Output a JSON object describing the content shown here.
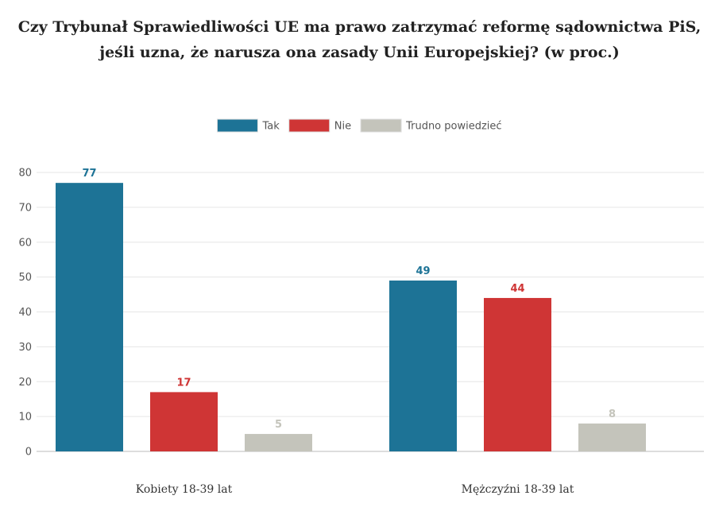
{
  "chart_data": {
    "type": "bar",
    "title_lines": [
      "Czy Trybunał Sprawiedliwości UE ma prawo zatrzymać reformę sądownictwa PiS,",
      "jeśli uzna, że narusza ona zasady Unii Europejskiej? (w proc.)"
    ],
    "categories": [
      "Kobiety 18-39 lat",
      "Mężczyźni 18-39 lat"
    ],
    "series": [
      {
        "name": "Tak",
        "color": "#1d7396",
        "values": [
          77,
          49
        ]
      },
      {
        "name": "Nie",
        "color": "#cf3535",
        "values": [
          17,
          44
        ]
      },
      {
        "name": "Trudno powiedzieć",
        "color": "#c4c4bb",
        "values": [
          5,
          8
        ]
      }
    ],
    "ylim": [
      0,
      80
    ],
    "yticks": [
      0,
      10,
      20,
      30,
      40,
      50,
      60,
      70,
      80
    ],
    "grid": true,
    "legend_position": "top-center",
    "data_labels": true
  }
}
